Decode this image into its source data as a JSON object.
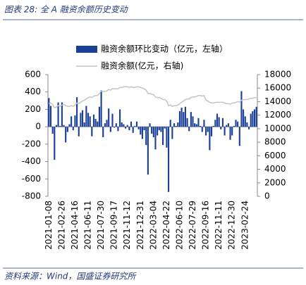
{
  "title": "图表 28:  全 A 融资余额历史变动",
  "source": "资料来源：Wind，国盛证券研究所",
  "chart_data": {
    "type": "bar-line",
    "categories": [
      "2021-01-08",
      null,
      null,
      null,
      null,
      null,
      null,
      "2021-02-26",
      null,
      null,
      null,
      null,
      null,
      null,
      "2021-04-16",
      null,
      null,
      null,
      null,
      null,
      null,
      "2021-06-11",
      null,
      null,
      null,
      null,
      null,
      null,
      "2021-07-30",
      null,
      null,
      null,
      null,
      null,
      null,
      "2021-09-17",
      null,
      null,
      null,
      null,
      null,
      null,
      "2021-11-12",
      null,
      null,
      null,
      null,
      null,
      null,
      "2021-12-31",
      null,
      null,
      null,
      null,
      null,
      null,
      "2022-03-04",
      null,
      null,
      null,
      null,
      null,
      null,
      "2022-04-22",
      null,
      null,
      null,
      null,
      null,
      null,
      "2022-06-10",
      null,
      null,
      null,
      null,
      null,
      null,
      "2022-07-29",
      null,
      null,
      null,
      null,
      null,
      null,
      "2022-09-16",
      null,
      null,
      null,
      null,
      null,
      null,
      "2022-11-11",
      null,
      null,
      null,
      null,
      null,
      null,
      "2022-12-30",
      null,
      null,
      null,
      null,
      null,
      null,
      "2023-02-24",
      null,
      null,
      null,
      null,
      null,
      null
    ],
    "series": [
      {
        "name": "融资余额环比变动（亿元，左轴）",
        "color": "#1a3f97",
        "kind": "bar",
        "axis": "y",
        "values": [
          330,
          240,
          -80,
          -380,
          20,
          280,
          10,
          280,
          20,
          -180,
          -60,
          30,
          120,
          -40,
          130,
          340,
          -110,
          160,
          190,
          50,
          240,
          160,
          120,
          -110,
          140,
          90,
          60,
          230,
          420,
          -120,
          40,
          80,
          210,
          -60,
          150,
          -10,
          40,
          -50,
          200,
          50,
          30,
          -20,
          20,
          -40,
          60,
          -70,
          10,
          60,
          -30,
          -90,
          -140,
          -40,
          -210,
          -550,
          40,
          -80,
          -120,
          -260,
          -100,
          -40,
          -60,
          -210,
          -20,
          -240,
          -750,
          80,
          -140,
          40,
          10,
          50,
          180,
          220,
          170,
          230,
          100,
          -50,
          170,
          120,
          40,
          30,
          100,
          10,
          -60,
          80,
          -100,
          -60,
          -270,
          -110,
          10,
          80,
          150,
          110,
          -30,
          100,
          -100,
          20,
          40,
          -150,
          -100,
          10,
          80,
          60,
          -220,
          410,
          200,
          120,
          50,
          -30,
          150,
          180,
          200,
          230
        ]
      },
      {
        "name": "融资余额(亿元，右轴)",
        "color": "#c4c4c4",
        "kind": "line",
        "axis": "y2",
        "values": [
          13700,
          13800,
          13600,
          13100,
          13200,
          13400,
          13300,
          13500,
          13600,
          13400,
          13300,
          13300,
          13400,
          13300,
          13500,
          13800,
          13700,
          13900,
          14100,
          14200,
          14400,
          14600,
          14700,
          14600,
          14800,
          14900,
          14900,
          15200,
          15600,
          15500,
          15500,
          15600,
          15800,
          15700,
          15900,
          15900,
          15900,
          15900,
          16100,
          16100,
          16200,
          16200,
          16200,
          16100,
          16200,
          16100,
          16100,
          16200,
          16200,
          16100,
          16000,
          15900,
          15700,
          15200,
          15200,
          15100,
          15000,
          14700,
          14600,
          14600,
          14500,
          14300,
          14300,
          14100,
          13400,
          13500,
          13300,
          13400,
          13400,
          13500,
          13700,
          13900,
          14100,
          14300,
          14400,
          14400,
          14600,
          14700,
          14700,
          14800,
          14900,
          14900,
          14800,
          14900,
          14200,
          14100,
          13900,
          13800,
          13800,
          13900,
          13900,
          13900,
          13900,
          13900,
          13800,
          13700,
          13700,
          13600,
          13800,
          13800,
          13900,
          14000,
          13900,
          14200,
          14300,
          14300,
          14300,
          14400,
          14500,
          14500,
          14600,
          14600
        ]
      }
    ],
    "ylim": [
      -800,
      600
    ],
    "yticks": [
      -800,
      -600,
      -400,
      -200,
      0,
      200,
      400,
      600
    ],
    "y2lim": [
      0,
      18000
    ],
    "y2ticks": [
      0,
      2000,
      4000,
      6000,
      8000,
      10000,
      12000,
      14000,
      16000,
      18000
    ]
  }
}
